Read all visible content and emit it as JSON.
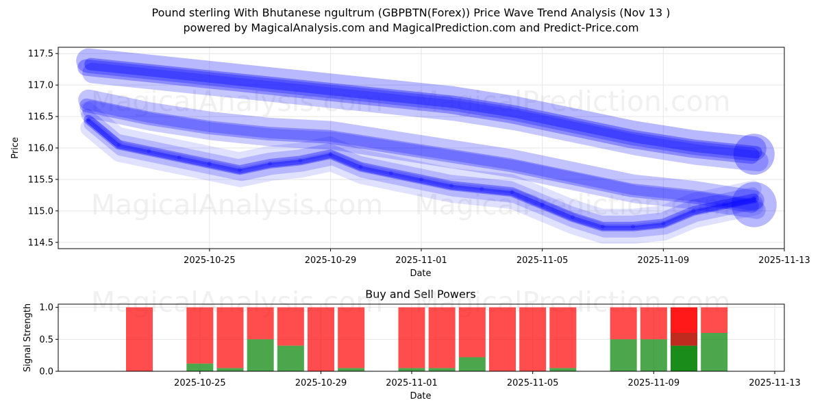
{
  "title_line1": "Pound sterling With Bhutanese ngultrum (GBPBTN(Forex)) Price Wave Trend Analysis (Nov 13 )",
  "title_line2": "powered by MagicalAnalysis.com and MagicalPrediction.com and Predict-Price.com",
  "watermarks": [
    "MagicalAnalysis.com",
    "MagicalPrediction.com"
  ],
  "colors": {
    "wave": "#0000ff",
    "buy": "#008000",
    "sell": "#ff0000",
    "grid": "#e6e6e6"
  },
  "chart_data": [
    {
      "type": "line",
      "title": "",
      "xlabel": "Date",
      "ylabel": "Price",
      "xlim": [
        "2025-10-20",
        "2025-11-13"
      ],
      "ylim": [
        114.4,
        117.6
      ],
      "x_ticks": [
        "2025-10-25",
        "2025-10-29",
        "2025-11-01",
        "2025-11-05",
        "2025-11-09",
        "2025-11-13"
      ],
      "y_ticks": [
        114.5,
        115.0,
        115.5,
        116.0,
        116.5,
        117.0,
        117.5
      ],
      "grid": true,
      "series": [
        {
          "name": "price wave",
          "x": [
            "2025-10-21",
            "2025-10-22",
            "2025-10-23",
            "2025-10-24",
            "2025-10-25",
            "2025-10-26",
            "2025-10-27",
            "2025-10-28",
            "2025-10-29",
            "2025-10-30",
            "2025-10-31",
            "2025-11-01",
            "2025-11-02",
            "2025-11-03",
            "2025-11-04",
            "2025-11-05",
            "2025-11-06",
            "2025-11-07",
            "2025-11-08",
            "2025-11-09",
            "2025-11-10",
            "2025-11-11",
            "2025-11-12"
          ],
          "values": [
            116.45,
            116.05,
            115.95,
            115.85,
            115.75,
            115.65,
            115.75,
            115.8,
            115.9,
            115.7,
            115.6,
            115.5,
            115.4,
            115.35,
            115.3,
            115.1,
            114.9,
            114.75,
            114.75,
            114.8,
            115.0,
            115.1,
            115.2
          ]
        },
        {
          "name": "upper trend band",
          "x": [
            "2025-10-21",
            "2025-10-23",
            "2025-10-25",
            "2025-10-27",
            "2025-10-29",
            "2025-10-31",
            "2025-11-02",
            "2025-11-04",
            "2025-11-06",
            "2025-11-08",
            "2025-11-10",
            "2025-11-12"
          ],
          "values": [
            117.3,
            117.2,
            117.1,
            117.0,
            116.9,
            116.8,
            116.7,
            116.55,
            116.35,
            116.15,
            116.0,
            115.9
          ]
        },
        {
          "name": "lower trend band",
          "x": [
            "2025-10-21",
            "2025-10-23",
            "2025-10-25",
            "2025-10-27",
            "2025-10-29",
            "2025-10-31",
            "2025-11-02",
            "2025-11-04",
            "2025-11-06",
            "2025-11-08",
            "2025-11-10",
            "2025-11-12"
          ],
          "values": [
            116.7,
            116.5,
            116.35,
            116.25,
            116.2,
            116.05,
            115.9,
            115.75,
            115.55,
            115.35,
            115.25,
            115.1
          ]
        }
      ]
    },
    {
      "type": "bar",
      "title": "Buy and Sell Powers",
      "xlabel": "Date",
      "ylabel": "Signal Strength",
      "ylim": [
        0,
        1.05
      ],
      "y_ticks": [
        0.0,
        0.5,
        1.0
      ],
      "x_ticks": [
        "2025-10-25",
        "2025-10-29",
        "2025-11-01",
        "2025-11-05",
        "2025-11-09",
        "2025-11-13"
      ],
      "categories": [
        "2025-10-23",
        "2025-10-25",
        "2025-10-26",
        "2025-10-27",
        "2025-10-28",
        "2025-10-29",
        "2025-10-30",
        "2025-11-01",
        "2025-11-02",
        "2025-11-03",
        "2025-11-04",
        "2025-11-05",
        "2025-11-06",
        "2025-11-08",
        "2025-11-09",
        "2025-11-10",
        "2025-11-11"
      ],
      "series": [
        {
          "name": "buy",
          "values": [
            0.0,
            0.12,
            0.05,
            0.5,
            0.4,
            0.0,
            0.05,
            0.05,
            0.05,
            0.22,
            0.0,
            0.0,
            0.05,
            0.5,
            0.5,
            0.4,
            0.6
          ]
        },
        {
          "name": "sell",
          "values": [
            1.0,
            0.88,
            0.95,
            0.5,
            0.6,
            1.0,
            0.95,
            0.95,
            0.95,
            0.78,
            1.0,
            1.0,
            0.95,
            0.5,
            0.5,
            0.6,
            0.4
          ]
        }
      ],
      "highlighted_category": "2025-11-10"
    }
  ]
}
